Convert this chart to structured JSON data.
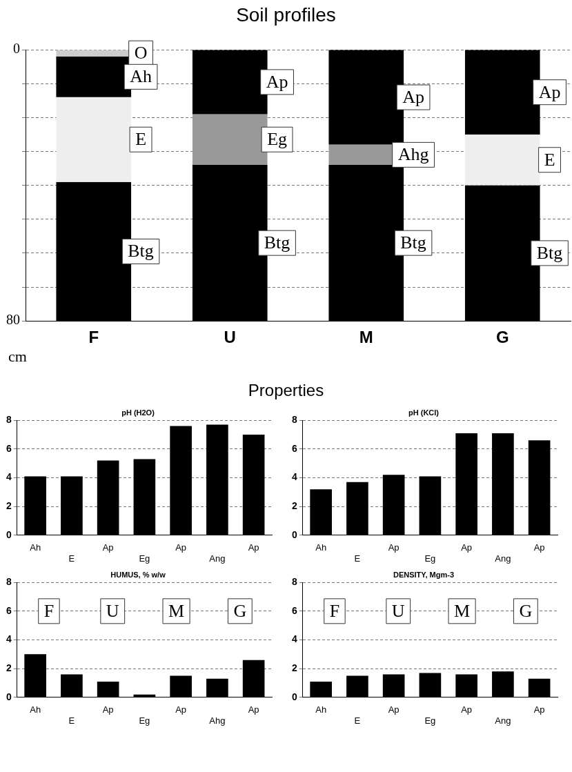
{
  "chart_data": [
    {
      "type": "bar",
      "title": "Soil profiles",
      "ylabel": "cm",
      "categories": [
        "F",
        "U",
        "M",
        "G"
      ],
      "stacked": true,
      "ylim": [
        80,
        0
      ],
      "yticks": [
        0,
        {
          "value": 10,
          "label": null
        },
        {
          "value": 20,
          "label": null
        },
        {
          "value": 30,
          "label": null
        },
        {
          "value": 40,
          "label": null
        },
        {
          "value": 50,
          "label": null
        },
        {
          "value": 60,
          "label": null
        },
        {
          "value": 70,
          "label": null
        },
        80
      ],
      "grid": "y",
      "series": [
        {
          "values": [
            2,
            19,
            28,
            25
          ],
          "colors": [
            "#cccccc",
            "#000000",
            "#000000",
            "#000000"
          ],
          "value_labels": [
            "O",
            "Ap",
            "Ap",
            "Ap"
          ]
        },
        {
          "values": [
            12,
            15,
            6,
            15
          ],
          "colors": [
            "#000000",
            "#999999",
            "#999999",
            "#eeeeee"
          ],
          "value_labels": [
            "Ah",
            "Eg",
            "Ahg",
            "E"
          ]
        },
        {
          "values": [
            25,
            46,
            46,
            40
          ],
          "colors": [
            "#eeeeee",
            "#000000",
            "#000000",
            "#000000"
          ],
          "value_labels": [
            "E",
            "Btg",
            "Btg",
            "Btg"
          ]
        },
        {
          "values": [
            41,
            null,
            null,
            null
          ],
          "colors": [
            "#000000",
            null,
            null,
            null
          ],
          "value_labels": [
            "Btg",
            null,
            null,
            null
          ]
        }
      ]
    },
    {
      "type": "other",
      "title": "Properties"
    },
    {
      "type": "bar",
      "title": "pH (H2O)",
      "categories": [
        "Ah",
        "E",
        "Ap",
        "Eg",
        "Ap",
        "Ang",
        "Ap"
      ],
      "values": [
        4.1,
        4.1,
        5.2,
        5.3,
        7.6,
        7.7,
        7.0
      ],
      "color": "#000000",
      "ylim": [
        0,
        8
      ],
      "yticks": [
        0,
        2,
        4,
        6,
        8
      ],
      "grid": "y"
    },
    {
      "type": "bar",
      "title": "pH (KCl)",
      "categories": [
        "Ah",
        "E",
        "Ap",
        "Eg",
        "Ap",
        "Ang",
        "Ap"
      ],
      "values": [
        3.2,
        3.7,
        4.2,
        4.1,
        7.1,
        7.1,
        6.6
      ],
      "color": "#000000",
      "ylim": [
        0,
        8
      ],
      "yticks": [
        0,
        2,
        4,
        6,
        8
      ],
      "grid": "y"
    },
    {
      "type": "bar",
      "title": "HUMUS, % w/w",
      "categories": [
        "Ah",
        "E",
        "Ap",
        "Eg",
        "Ap",
        "Ahg",
        "Ap"
      ],
      "values": [
        3.0,
        1.6,
        1.1,
        0.2,
        1.5,
        1.3,
        2.6
      ],
      "color": "#000000",
      "ylim": [
        0,
        8
      ],
      "yticks": [
        0,
        2,
        4,
        6,
        8
      ],
      "grid": "y",
      "annotations": [
        "F",
        "U",
        "M",
        "G"
      ]
    },
    {
      "type": "bar",
      "title": "DENSITY, Mgm-3",
      "categories": [
        "Ah",
        "E",
        "Ap",
        "Eg",
        "Ap",
        "Ang",
        "Ap"
      ],
      "values": [
        1.1,
        1.5,
        1.6,
        1.7,
        1.6,
        1.8,
        1.3
      ],
      "color": "#000000",
      "ylim": [
        0,
        8
      ],
      "yticks": [
        0,
        2,
        4,
        6,
        8
      ],
      "grid": "y",
      "annotations": [
        "F",
        "U",
        "M",
        "G"
      ]
    }
  ]
}
